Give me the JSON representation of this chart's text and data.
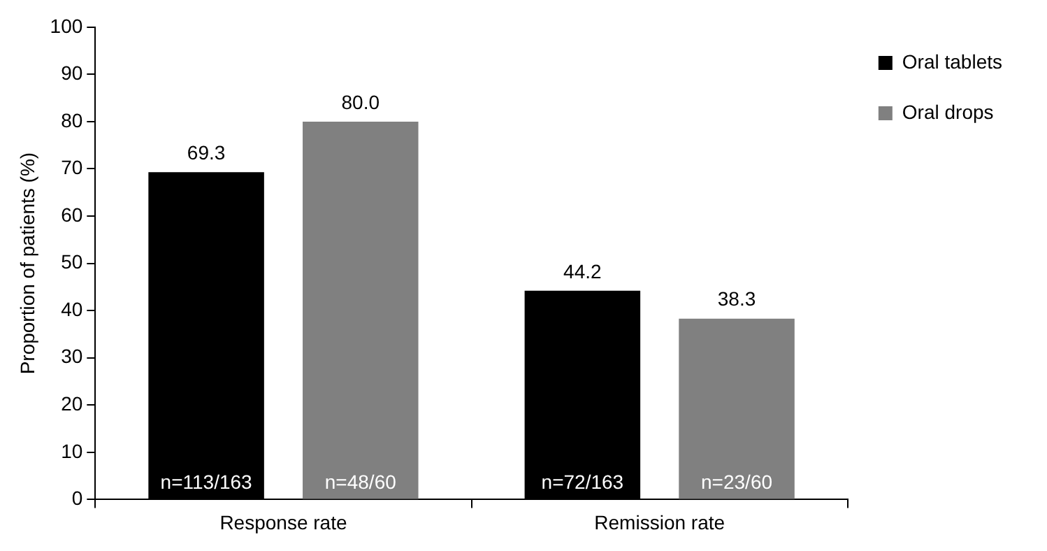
{
  "chart_data": {
    "type": "bar",
    "ylabel": "Proportion of patients (%)",
    "categories": [
      "Response rate",
      "Remission rate"
    ],
    "series": [
      {
        "name": "Oral tablets",
        "color": "#000000",
        "values": [
          69.3,
          44.2
        ],
        "value_labels": [
          "69.3",
          "44.2"
        ]
      },
      {
        "name": "Oral drops",
        "color": "#808080",
        "values": [
          80.0,
          38.3
        ],
        "value_labels": [
          "80.0",
          "38.3"
        ]
      }
    ],
    "annotations": [
      "n=113/163",
      "n=48/60",
      "n=72/163",
      "n=23/60"
    ],
    "ylim": [
      0,
      100
    ],
    "yticks": [
      0,
      10,
      20,
      30,
      40,
      50,
      60,
      70,
      80,
      90,
      100
    ],
    "grid": false,
    "legend": "top right"
  }
}
